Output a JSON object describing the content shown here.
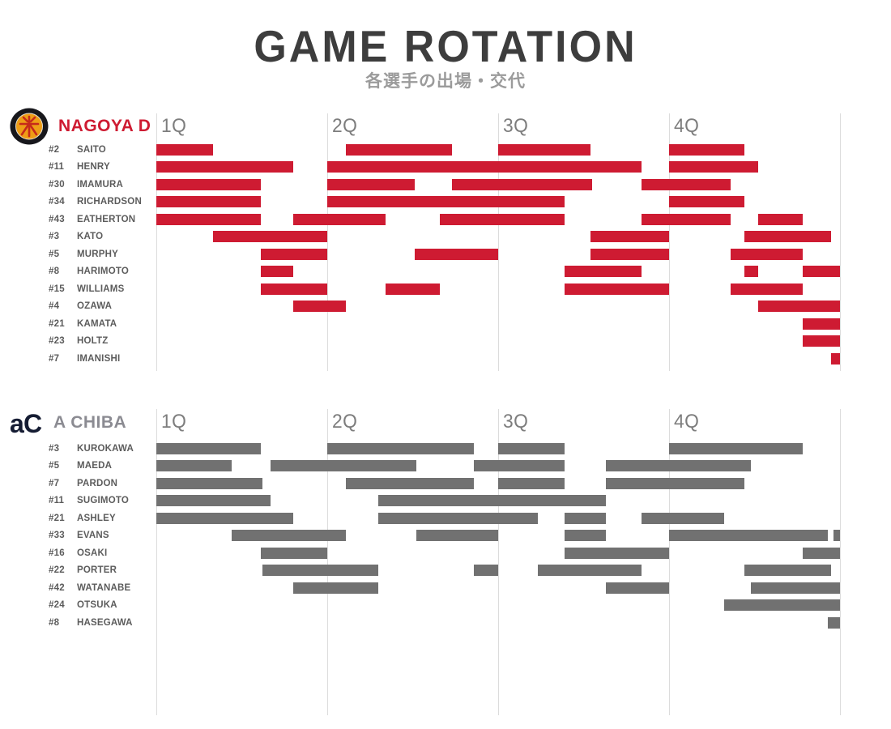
{
  "title": "GAME ROTATION",
  "subtitle": "各選手の出場・交代",
  "quarters": [
    "1Q",
    "2Q",
    "3Q",
    "4Q"
  ],
  "colors": {
    "page_bg": "#ffffff",
    "title_text": "#3d3d3d",
    "subtitle_text": "#9b9b9b",
    "player_text": "#5c5c5c",
    "quarter_text": "#7d7d7d",
    "gridline": "#dcdcdc",
    "nagoya_red": "#ce1b32",
    "chiba_gray": "#717171",
    "chiba_name_gray": "#8b8b92",
    "chiba_logo_navy": "#151c33"
  },
  "chart_data": {
    "type": "gantt",
    "title": "GAME ROTATION",
    "subtitle": "各選手の出場・交代",
    "x_axis": {
      "unit": "minutes",
      "range": [
        0,
        40
      ],
      "quarter_minutes": 10,
      "quarters": [
        "1Q",
        "2Q",
        "3Q",
        "4Q"
      ],
      "gridlines": true
    },
    "teams": [
      {
        "name": "NAGOYA D",
        "bar_color": "#ce1b32",
        "players": [
          {
            "number": "#2",
            "name": "SAITO",
            "stints": [
              [
                0,
                3.3
              ],
              [
                11.1,
                17.3
              ],
              [
                20,
                25.4
              ],
              [
                30,
                34.4
              ]
            ]
          },
          {
            "number": "#11",
            "name": "HENRY",
            "stints": [
              [
                0,
                8
              ],
              [
                10,
                28.4
              ],
              [
                30,
                35.2
              ]
            ]
          },
          {
            "number": "#30",
            "name": "IMAMURA",
            "stints": [
              [
                0,
                6.1
              ],
              [
                10,
                15.1
              ],
              [
                17.3,
                25.5
              ],
              [
                28.4,
                33.6
              ]
            ]
          },
          {
            "number": "#34",
            "name": "RICHARDSON",
            "stints": [
              [
                0,
                6.1
              ],
              [
                10,
                23.9
              ],
              [
                30,
                34.4
              ]
            ]
          },
          {
            "number": "#43",
            "name": "EATHERTON",
            "stints": [
              [
                0,
                6.1
              ],
              [
                8,
                13.4
              ],
              [
                16.6,
                23.9
              ],
              [
                28.4,
                33.6
              ],
              [
                35.2,
                37.8
              ]
            ]
          },
          {
            "number": "#3",
            "name": "KATO",
            "stints": [
              [
                3.3,
                10
              ],
              [
                25.4,
                30
              ],
              [
                34.4,
                39.5
              ]
            ]
          },
          {
            "number": "#5",
            "name": "MURPHY",
            "stints": [
              [
                6.1,
                10
              ],
              [
                15.1,
                20
              ],
              [
                25.4,
                30
              ],
              [
                33.6,
                37.8
              ]
            ]
          },
          {
            "number": "#8",
            "name": "HARIMOTO",
            "stints": [
              [
                6.1,
                8
              ],
              [
                23.9,
                28.4
              ],
              [
                34.4,
                35.2
              ],
              [
                37.8,
                40
              ]
            ]
          },
          {
            "number": "#15",
            "name": "WILLIAMS",
            "stints": [
              [
                6.1,
                10
              ],
              [
                13.4,
                16.6
              ],
              [
                23.9,
                30
              ],
              [
                33.6,
                37.8
              ]
            ]
          },
          {
            "number": "#4",
            "name": "OZAWA",
            "stints": [
              [
                8,
                11.1
              ],
              [
                35.2,
                40
              ]
            ]
          },
          {
            "number": "#21",
            "name": "KAMATA",
            "stints": [
              [
                37.8,
                40
              ]
            ]
          },
          {
            "number": "#23",
            "name": "HOLTZ",
            "stints": [
              [
                37.8,
                40
              ]
            ]
          },
          {
            "number": "#7",
            "name": "IMANISHI",
            "stints": [
              [
                39.5,
                40
              ]
            ]
          }
        ]
      },
      {
        "name": "A CHIBA",
        "bar_color": "#717171",
        "players": [
          {
            "number": "#3",
            "name": "KUROKAWA",
            "stints": [
              [
                0,
                6.1
              ],
              [
                10,
                18.6
              ],
              [
                20,
                23.9
              ],
              [
                30,
                37.8
              ]
            ]
          },
          {
            "number": "#5",
            "name": "MAEDA",
            "stints": [
              [
                0,
                4.4
              ],
              [
                6.7,
                15.2
              ],
              [
                18.6,
                23.9
              ],
              [
                26.3,
                34.8
              ]
            ]
          },
          {
            "number": "#7",
            "name": "PARDON",
            "stints": [
              [
                0,
                6.2
              ],
              [
                11.1,
                18.6
              ],
              [
                20,
                23.9
              ],
              [
                26.3,
                34.4
              ]
            ]
          },
          {
            "number": "#11",
            "name": "SUGIMOTO",
            "stints": [
              [
                0,
                6.7
              ],
              [
                13,
                26.3
              ]
            ]
          },
          {
            "number": "#21",
            "name": "ASHLEY",
            "stints": [
              [
                0,
                8
              ],
              [
                13,
                22.3
              ],
              [
                23.9,
                26.3
              ],
              [
                28.4,
                33.2
              ]
            ]
          },
          {
            "number": "#33",
            "name": "EVANS",
            "stints": [
              [
                4.4,
                11.1
              ],
              [
                15.2,
                20
              ],
              [
                23.9,
                26.3
              ],
              [
                30,
                39.3
              ],
              [
                39.6,
                40
              ]
            ]
          },
          {
            "number": "#16",
            "name": "OSAKI",
            "stints": [
              [
                6.1,
                10
              ],
              [
                23.9,
                30
              ],
              [
                37.8,
                40
              ]
            ]
          },
          {
            "number": "#22",
            "name": "PORTER",
            "stints": [
              [
                6.2,
                13
              ],
              [
                18.6,
                20
              ],
              [
                22.3,
                28.4
              ],
              [
                34.4,
                39.5
              ]
            ]
          },
          {
            "number": "#42",
            "name": "WATANABE",
            "stints": [
              [
                8,
                13
              ],
              [
                26.3,
                30
              ],
              [
                34.8,
                40
              ]
            ]
          },
          {
            "number": "#24",
            "name": "OTSUKA",
            "stints": [
              [
                33.2,
                40
              ]
            ]
          },
          {
            "number": "#8",
            "name": "HASEGAWA",
            "stints": [
              [
                39.3,
                40
              ]
            ]
          }
        ]
      }
    ]
  }
}
